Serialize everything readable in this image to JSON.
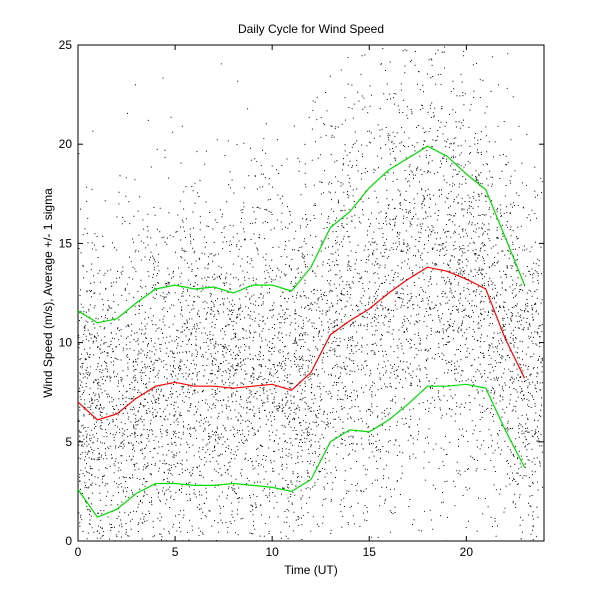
{
  "chart_data": {
    "type": "line",
    "title": "Daily Cycle for Wind Speed",
    "xlabel": "Time (UT)",
    "ylabel": "Wind Speed (m/s), Average +/- 1 sigma",
    "xlim": [
      0,
      24
    ],
    "ylim": [
      0,
      25
    ],
    "xticks": [
      0,
      5,
      10,
      15,
      20
    ],
    "yticks": [
      0,
      5,
      10,
      15,
      20,
      25
    ],
    "grid": false,
    "scatter": {
      "description_marker": "point",
      "color": "#000000",
      "approx_count": 7000
    },
    "series": [
      {
        "role": "average",
        "color": "#ff0000",
        "x": [
          0,
          1,
          2,
          3,
          4,
          5,
          6,
          7,
          8,
          9,
          10,
          11,
          12,
          13,
          14,
          15,
          16,
          17,
          18,
          19,
          20,
          21,
          22,
          23
        ],
        "values": [
          7.0,
          6.1,
          6.4,
          7.2,
          7.8,
          8.0,
          7.8,
          7.8,
          7.7,
          7.8,
          7.9,
          7.6,
          8.5,
          10.4,
          11.1,
          11.7,
          12.5,
          13.2,
          13.8,
          13.6,
          13.2,
          12.7,
          10.2,
          8.2
        ]
      },
      {
        "role": "plus-1-sigma",
        "color": "#00dd00",
        "x": [
          0,
          1,
          2,
          3,
          4,
          5,
          6,
          7,
          8,
          9,
          10,
          11,
          12,
          13,
          14,
          15,
          16,
          17,
          18,
          19,
          20,
          21,
          22,
          23
        ],
        "values": [
          11.6,
          11.0,
          11.2,
          12.0,
          12.7,
          12.9,
          12.7,
          12.8,
          12.5,
          12.9,
          12.9,
          12.6,
          13.8,
          15.8,
          16.6,
          17.8,
          18.7,
          19.3,
          19.9,
          19.4,
          18.5,
          17.7,
          15.3,
          12.9
        ]
      },
      {
        "role": "minus-1-sigma",
        "color": "#00dd00",
        "x": [
          0,
          1,
          2,
          3,
          4,
          5,
          6,
          7,
          8,
          9,
          10,
          11,
          12,
          13,
          14,
          15,
          16,
          17,
          18,
          19,
          20,
          21,
          22,
          23
        ],
        "values": [
          2.6,
          1.2,
          1.6,
          2.4,
          2.9,
          2.9,
          2.8,
          2.8,
          2.9,
          2.8,
          2.7,
          2.5,
          3.1,
          5.0,
          5.6,
          5.5,
          6.1,
          6.9,
          7.8,
          7.8,
          7.9,
          7.7,
          5.6,
          3.7
        ]
      }
    ]
  }
}
